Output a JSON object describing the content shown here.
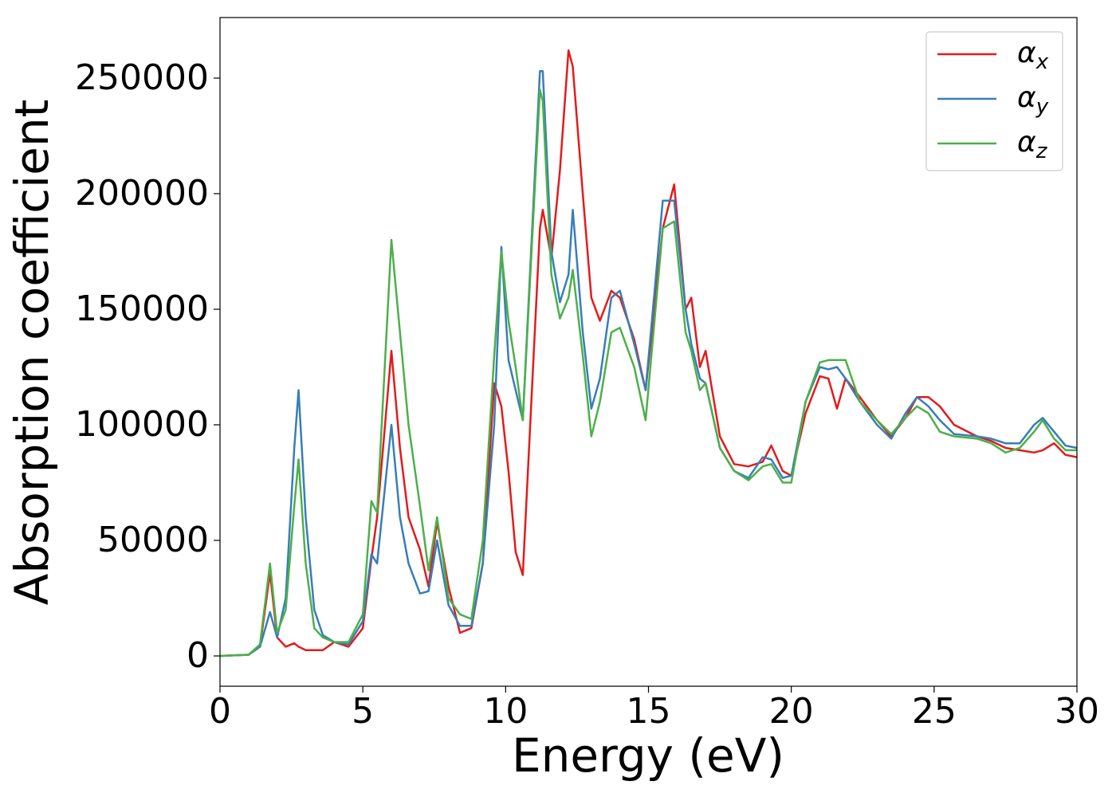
{
  "chart_data": {
    "type": "line",
    "xlabel": "Energy (eV)",
    "ylabel": "Absorption coefficient",
    "x": [
      0,
      1.0,
      1.4,
      1.75,
      2.0,
      2.3,
      2.6,
      2.75,
      3.0,
      3.3,
      3.6,
      4.0,
      4.5,
      5.0,
      5.3,
      5.5,
      6.0,
      6.3,
      6.6,
      7.0,
      7.3,
      7.6,
      8.0,
      8.4,
      8.8,
      9.2,
      9.6,
      9.85,
      10.1,
      10.35,
      10.6,
      11.2,
      11.3,
      11.6,
      11.9,
      12.2,
      12.35,
      12.7,
      13.0,
      13.3,
      13.7,
      14.0,
      14.5,
      14.9,
      15.5,
      15.9,
      16.3,
      16.5,
      16.8,
      17.0,
      17.5,
      18.0,
      18.5,
      19.0,
      19.3,
      19.7,
      20.0,
      20.5,
      21.0,
      21.3,
      21.6,
      21.9,
      22.4,
      23.0,
      23.5,
      24.0,
      24.4,
      24.8,
      25.2,
      25.7,
      26.5,
      27.0,
      27.5,
      28.0,
      28.5,
      28.8,
      29.2,
      29.6,
      30.0
    ],
    "series": [
      {
        "name": "αx",
        "color": "#e41a1c",
        "values": [
          0,
          500,
          4000,
          36000,
          8000,
          4000,
          5500,
          4000,
          2500,
          2500,
          2500,
          6000,
          4000,
          12000,
          42000,
          60000,
          132000,
          90000,
          60000,
          46000,
          30000,
          58000,
          30000,
          10000,
          12000,
          40000,
          118000,
          108000,
          80000,
          45000,
          35000,
          185000,
          193000,
          172000,
          210000,
          262000,
          255000,
          200000,
          155000,
          145000,
          158000,
          155000,
          137000,
          115000,
          185000,
          204000,
          150000,
          155000,
          125000,
          132000,
          95000,
          83000,
          82000,
          84000,
          91000,
          80000,
          78000,
          105000,
          121000,
          120000,
          107000,
          120000,
          112000,
          102000,
          95000,
          103000,
          112000,
          112000,
          108000,
          100000,
          95000,
          93000,
          90000,
          89000,
          88000,
          89000,
          92000,
          87000,
          86000
        ]
      },
      {
        "name": "αy",
        "color": "#377eb8",
        "values": [
          0,
          500,
          4000,
          19000,
          8000,
          25000,
          90000,
          115000,
          60000,
          20000,
          9000,
          6000,
          5000,
          15000,
          44000,
          40000,
          100000,
          60000,
          40000,
          27000,
          28000,
          50000,
          22000,
          13000,
          13000,
          40000,
          100000,
          177000,
          128000,
          115000,
          102000,
          253000,
          253000,
          175000,
          153000,
          165000,
          193000,
          140000,
          107000,
          120000,
          155000,
          158000,
          135000,
          115000,
          197000,
          197000,
          150000,
          135000,
          120000,
          118000,
          90000,
          80000,
          77000,
          86000,
          85000,
          77000,
          78000,
          110000,
          125000,
          124000,
          125000,
          120000,
          110000,
          100000,
          94000,
          105000,
          112000,
          108000,
          102000,
          96000,
          95000,
          94000,
          92000,
          92000,
          100000,
          103000,
          97000,
          91000,
          90000
        ]
      },
      {
        "name": "αz",
        "color": "#4daf4a",
        "values": [
          0,
          500,
          5000,
          40000,
          10000,
          20000,
          65000,
          85000,
          40000,
          12000,
          8000,
          6000,
          6000,
          18000,
          67000,
          62000,
          180000,
          140000,
          100000,
          65000,
          37000,
          60000,
          25000,
          18000,
          16000,
          50000,
          130000,
          175000,
          145000,
          125000,
          102000,
          245000,
          240000,
          165000,
          146000,
          155000,
          167000,
          130000,
          95000,
          110000,
          140000,
          142000,
          125000,
          102000,
          185000,
          188000,
          140000,
          132000,
          115000,
          118000,
          90000,
          80000,
          76000,
          82000,
          83000,
          75000,
          75000,
          110000,
          127000,
          128000,
          128000,
          128000,
          110000,
          102000,
          96000,
          103000,
          108000,
          105000,
          97000,
          95000,
          94000,
          92000,
          88000,
          90000,
          97000,
          102000,
          94000,
          89000,
          89000
        ]
      }
    ],
    "xlim": [
      0,
      30
    ],
    "xticks": [
      0,
      5,
      10,
      15,
      20,
      25,
      30
    ],
    "ylim": [
      -13100,
      276200
    ],
    "yticks": [
      0,
      50000,
      100000,
      150000,
      200000,
      250000
    ],
    "legend": "upper right",
    "grid": false
  }
}
